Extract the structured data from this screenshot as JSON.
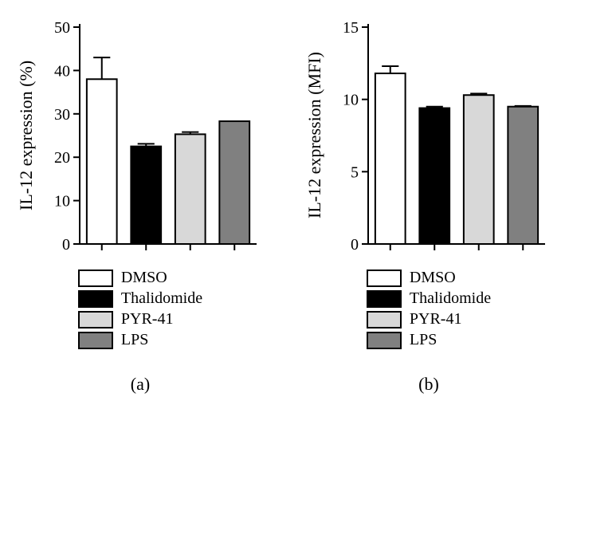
{
  "panels": {
    "a": {
      "ylabel": "IL-12 expression (%)",
      "subcaption": "(a)",
      "ylim": [
        0,
        50
      ],
      "ytick_step": 10,
      "label_fontsize": 22,
      "tick_fontsize": 20,
      "axis_color": "#000000",
      "background_color": "#ffffff",
      "bar_colors": [
        "#ffffff",
        "#000000",
        "#d8d8d8",
        "#808080"
      ],
      "bar_outline": "#000000",
      "bar_width": 0.68,
      "categories": [
        "DMSO",
        "Thalidomide",
        "PYR-41",
        "LPS"
      ],
      "values": [
        38,
        22.5,
        25.3,
        28.3
      ],
      "errors": [
        5.0,
        0.6,
        0.5,
        0.0
      ],
      "legend": [
        {
          "label": "DMSO",
          "color": "#ffffff"
        },
        {
          "label": "Thalidomide",
          "color": "#000000"
        },
        {
          "label": "PYR-41",
          "color": "#d8d8d8"
        },
        {
          "label": "LPS",
          "color": "#808080"
        }
      ]
    },
    "b": {
      "ylabel": "IL-12 expression (MFI)",
      "subcaption": "(b)",
      "ylim": [
        0,
        15
      ],
      "ytick_step": 5,
      "label_fontsize": 22,
      "tick_fontsize": 20,
      "axis_color": "#000000",
      "background_color": "#ffffff",
      "bar_colors": [
        "#ffffff",
        "#000000",
        "#d8d8d8",
        "#808080"
      ],
      "bar_outline": "#000000",
      "bar_width": 0.68,
      "categories": [
        "DMSO",
        "Thalidomide",
        "PYR-41",
        "LPS"
      ],
      "values": [
        11.8,
        9.4,
        10.3,
        9.5
      ],
      "errors": [
        0.5,
        0.1,
        0.1,
        0.05
      ],
      "legend": [
        {
          "label": "DMSO",
          "color": "#ffffff"
        },
        {
          "label": "Thalidomide",
          "color": "#000000"
        },
        {
          "label": "PYR-41",
          "color": "#d8d8d8"
        },
        {
          "label": "LPS",
          "color": "#808080"
        }
      ]
    }
  }
}
